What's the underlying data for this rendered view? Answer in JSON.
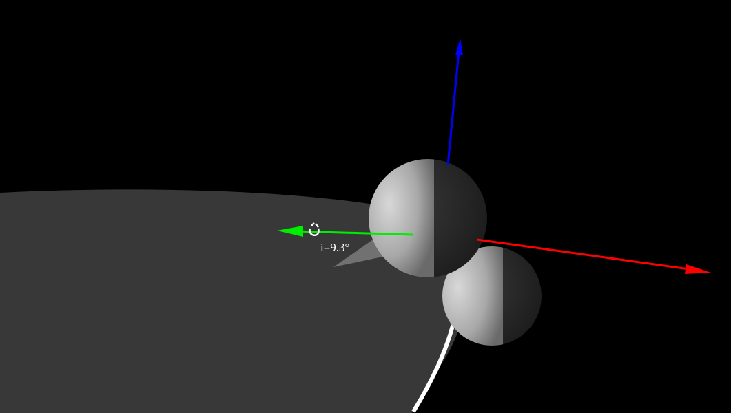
{
  "annotation": {
    "label": "i=9.3°"
  }
}
